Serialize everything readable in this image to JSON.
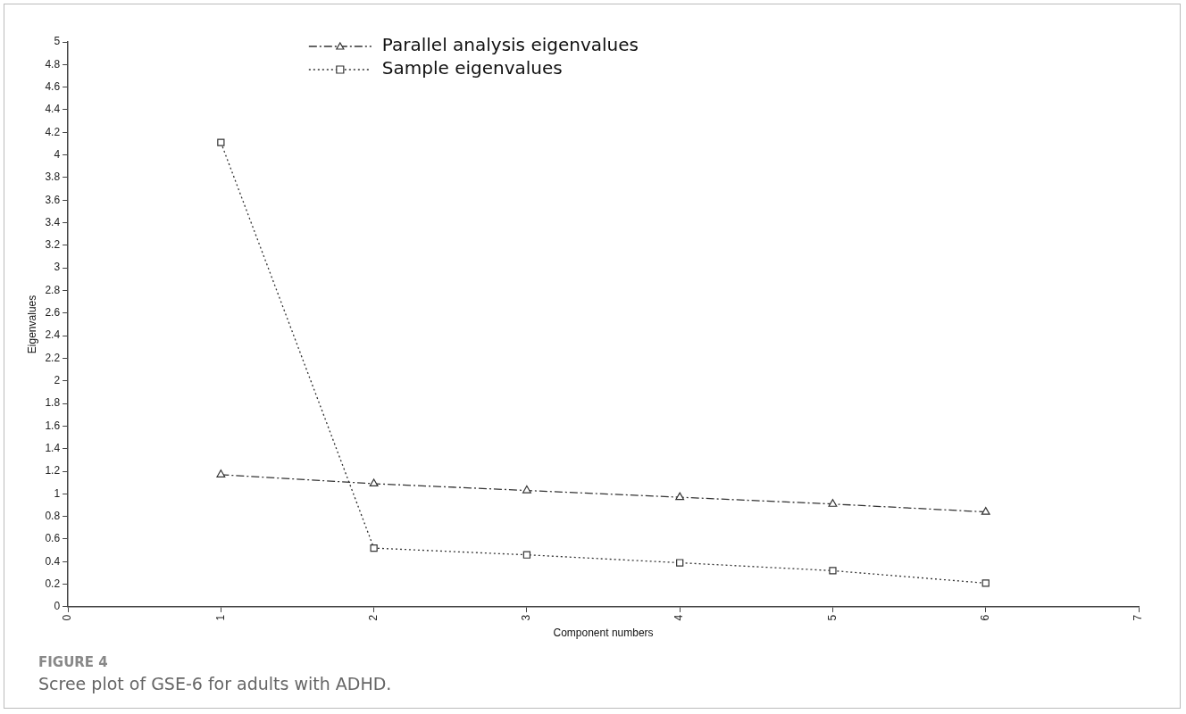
{
  "chart_data": {
    "type": "line",
    "xlabel": "Component numbers",
    "ylabel": "Eigenvalues",
    "x": [
      1,
      2,
      3,
      4,
      5,
      6
    ],
    "series": [
      {
        "name": "Parallel analysis eigenvalues",
        "color": "#333333",
        "values": [
          1.17,
          1.09,
          1.03,
          0.97,
          0.91,
          0.84
        ],
        "marker": "triangle",
        "line_style": "dashdot"
      },
      {
        "name": "Sample eigenvalues",
        "color": "#333333",
        "values": [
          4.11,
          0.52,
          0.46,
          0.39,
          0.32,
          0.21
        ],
        "marker": "square",
        "line_style": "dotted"
      }
    ],
    "xlim": [
      0,
      7
    ],
    "xticks": [
      0,
      1,
      2,
      3,
      4,
      5,
      6,
      7
    ],
    "ylim": [
      0,
      5
    ],
    "yticks": [
      0,
      0.2,
      0.4,
      0.6,
      0.8,
      1,
      1.2,
      1.4,
      1.6,
      1.8,
      2,
      2.2,
      2.4,
      2.6,
      2.8,
      3,
      3.2,
      3.4,
      3.6,
      3.8,
      4,
      4.2,
      4.4,
      4.6,
      4.8,
      5
    ],
    "grid": false,
    "legend": "top",
    "annotations": [
      "FIGURE 4",
      "Scree plot of GSE-6 for adults with ADHD."
    ]
  }
}
